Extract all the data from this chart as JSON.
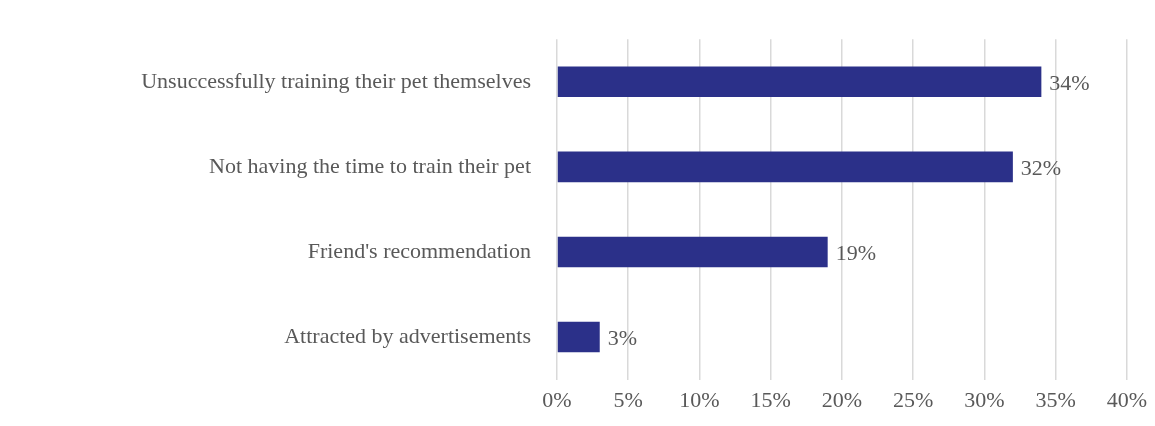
{
  "chart_data": {
    "type": "bar",
    "orientation": "horizontal",
    "categories": [
      "Unsuccessfully training their pet themselves",
      "Not having the time to train their pet",
      "Friend's recommendation",
      "Attracted by advertisements"
    ],
    "values": [
      34,
      32,
      19,
      3
    ],
    "color": "#2b3089",
    "value_labels": [
      "34%",
      "32%",
      "19%",
      "3%"
    ],
    "xlim": [
      0,
      40
    ],
    "xticks": [
      {
        "value": 0,
        "label": "0%"
      },
      {
        "value": 5,
        "label": "5%"
      },
      {
        "value": 10,
        "label": "10%"
      },
      {
        "value": 15,
        "label": "15%"
      },
      {
        "value": 20,
        "label": "20%"
      },
      {
        "value": 25,
        "label": "25%"
      },
      {
        "value": 30,
        "label": "30%"
      },
      {
        "value": 35,
        "label": "35%"
      },
      {
        "value": 40,
        "label": "40%"
      }
    ],
    "grid": "x",
    "legend": false
  }
}
